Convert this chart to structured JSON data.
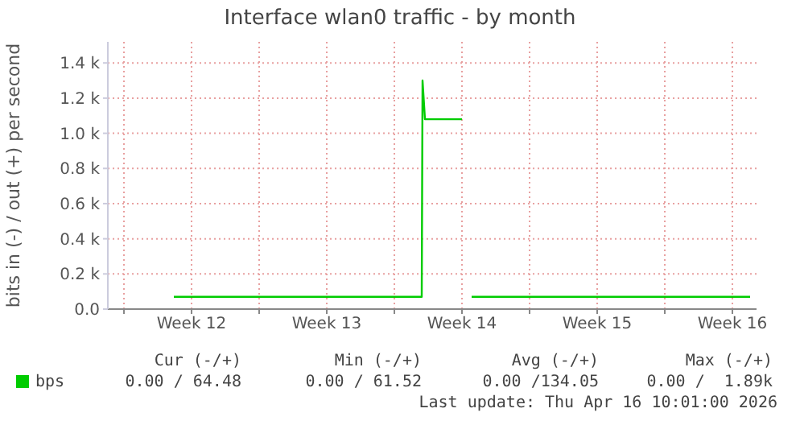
{
  "chart_data": {
    "type": "line",
    "title": "Interface wlan0 traffic - by month",
    "ylabel": "bits in (-) / out (+) per second",
    "x": [
      "2026-03-17T14:00",
      "2026-03-30T10:00",
      "2026-03-30T11:00",
      "2026-03-30T14:00",
      "2026-04-01T12:00",
      "2026-04-01T17:00",
      "2026-04-02T00:00",
      "2026-04-16T10:00"
    ],
    "series": [
      {
        "name": "bps",
        "color": "#00cc00",
        "values": [
          70,
          70,
          1300,
          1080,
          1080,
          null,
          70,
          70
        ]
      }
    ],
    "xlim": [
      "2026-03-14T04:00",
      "2026-04-16T18:00"
    ],
    "xticks": [
      {
        "value": "2026-03-15",
        "label": null
      },
      {
        "value": "2026-03-18T12:00",
        "label": "Week 12"
      },
      {
        "value": "2026-03-22",
        "label": null
      },
      {
        "value": "2026-03-25T12:00",
        "label": "Week 13"
      },
      {
        "value": "2026-03-29",
        "label": null
      },
      {
        "value": "2026-04-01T12:00",
        "label": "Week 14"
      },
      {
        "value": "2026-04-05",
        "label": null
      },
      {
        "value": "2026-04-08T12:00",
        "label": "Week 15"
      },
      {
        "value": "2026-04-12",
        "label": null
      },
      {
        "value": "2026-04-15T12:00",
        "label": "Week 16"
      }
    ],
    "ylim": [
      0,
      1520
    ],
    "yticks": [
      {
        "value": 0,
        "label": "0.0"
      },
      {
        "value": 200,
        "label": "0.2 k"
      },
      {
        "value": 400,
        "label": "0.4 k"
      },
      {
        "value": 600,
        "label": "0.6 k"
      },
      {
        "value": 800,
        "label": "0.8 k"
      },
      {
        "value": 1000,
        "label": "1.0 k"
      },
      {
        "value": 1200,
        "label": "1.2 k"
      },
      {
        "value": 1400,
        "label": "1.4 k"
      }
    ],
    "grid": true,
    "legend": "bottom",
    "marker": "none",
    "line_style": "solid",
    "annotations": [
      "Cur (-/+)",
      "Min (-/+)",
      "Avg (-/+)",
      "Max (-/+)",
      "0.00 / 64.48",
      "0.00 / 61.52",
      "0.00 /134.05",
      "0.00 /  1.89k",
      "Last update: Thu Apr 16 10:01:00 2026"
    ]
  }
}
